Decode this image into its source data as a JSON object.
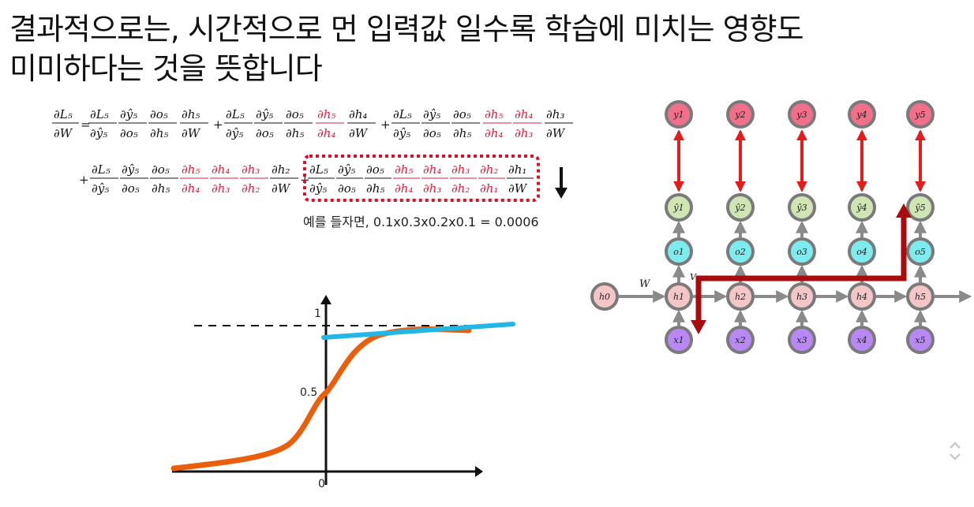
{
  "slide": {
    "title_line1": "결과적으로는, 시간적으로 먼 입력값 일수록 학습에 미치는 영향도",
    "title_line2": "미미하다는 것을 뜻합니다"
  },
  "formula": {
    "caption": "예를 들자면, 0.1x0.3x0.2x0.1 = 0.0006"
  },
  "sigmoid": {
    "label_one": "1",
    "label_half": "0.5",
    "label_zero": "0",
    "colors": {
      "curve": "#ea5f0c",
      "tangent": "#23b7e5",
      "axis": "#111111"
    }
  },
  "rnn": {
    "outputs": [
      "y1",
      "y2",
      "y3",
      "y4",
      "y5"
    ],
    "preds": [
      "ŷ1",
      "ŷ2",
      "ŷ3",
      "ŷ4",
      "ŷ5"
    ],
    "os": [
      "o1",
      "o2",
      "o3",
      "o4",
      "o5"
    ],
    "hiddens": [
      "h1",
      "h2",
      "h3",
      "h4",
      "h5"
    ],
    "inputs": [
      "x1",
      "x2",
      "x3",
      "x4",
      "x5"
    ],
    "h0": "h0",
    "label_w": "W",
    "label_v": "V",
    "colors": {
      "y": "#f0708a",
      "pred": "#cfe6b4",
      "o": "#7eecef",
      "h": "#f3c6c8",
      "x": "#b889f4",
      "h0": "#f3c6c8",
      "ring": "#7a7a7a",
      "red_arrow": "#e31c1c",
      "dark_arrow": "#a80c0c"
    }
  }
}
